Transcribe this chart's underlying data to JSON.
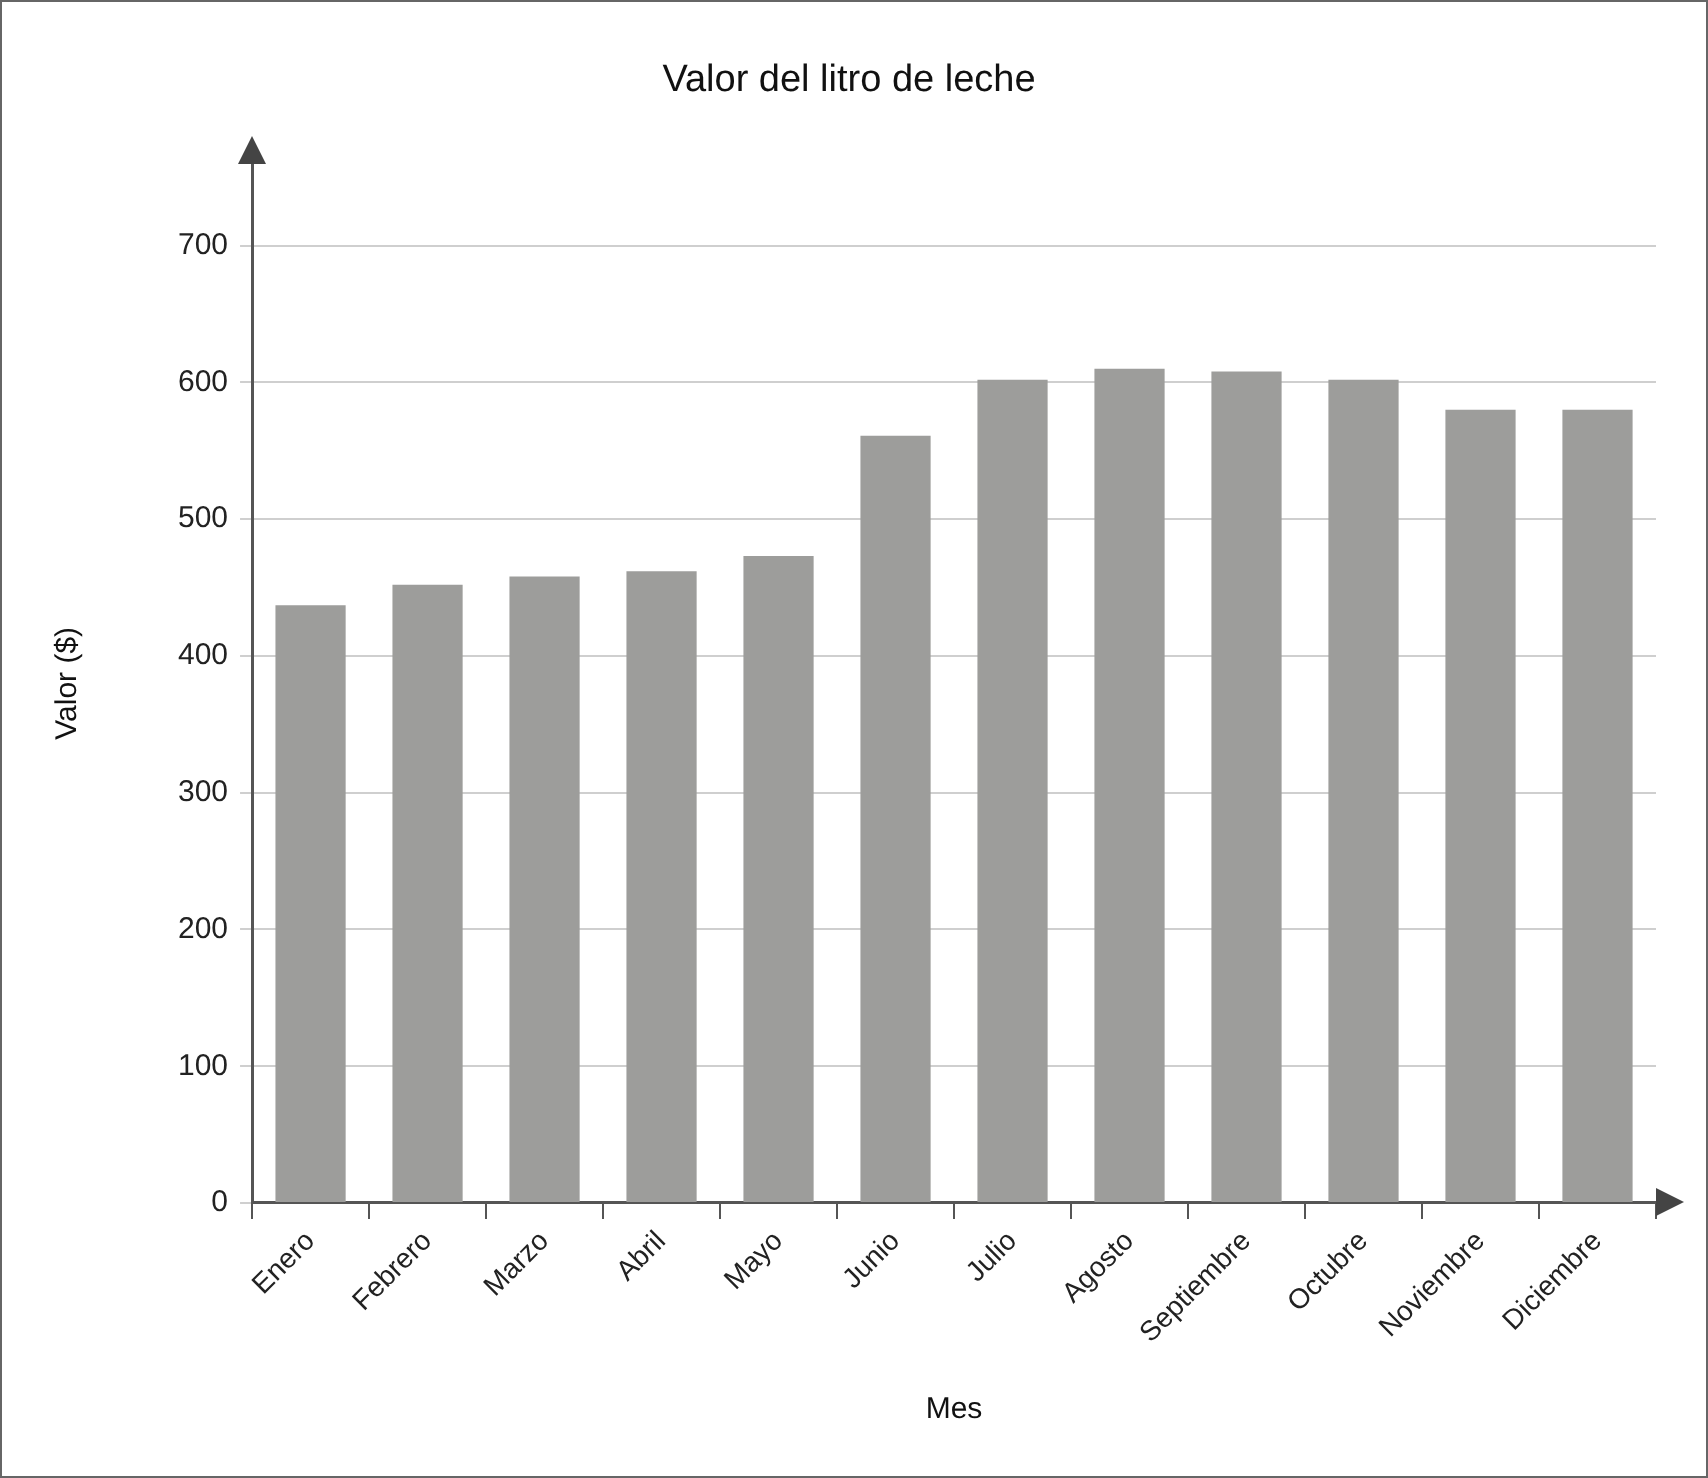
{
  "chart_data": {
    "type": "bar",
    "title": "Valor del litro de leche",
    "xlabel": "Mes",
    "ylabel": "Valor ($)",
    "categories": [
      "Enero",
      "Febrero",
      "Marzo",
      "Abril",
      "Mayo",
      "Junio",
      "Julio",
      "Agosto",
      "Septiembre",
      "Octubre",
      "Noviembre",
      "Diciembre"
    ],
    "values": [
      437,
      452,
      458,
      462,
      473,
      561,
      602,
      610,
      608,
      602,
      580,
      580
    ],
    "color": "#9d9d9b",
    "ylim": [
      0,
      760
    ],
    "yticks": [
      0,
      100,
      200,
      300,
      400,
      500,
      600,
      700
    ],
    "grid": "y"
  }
}
